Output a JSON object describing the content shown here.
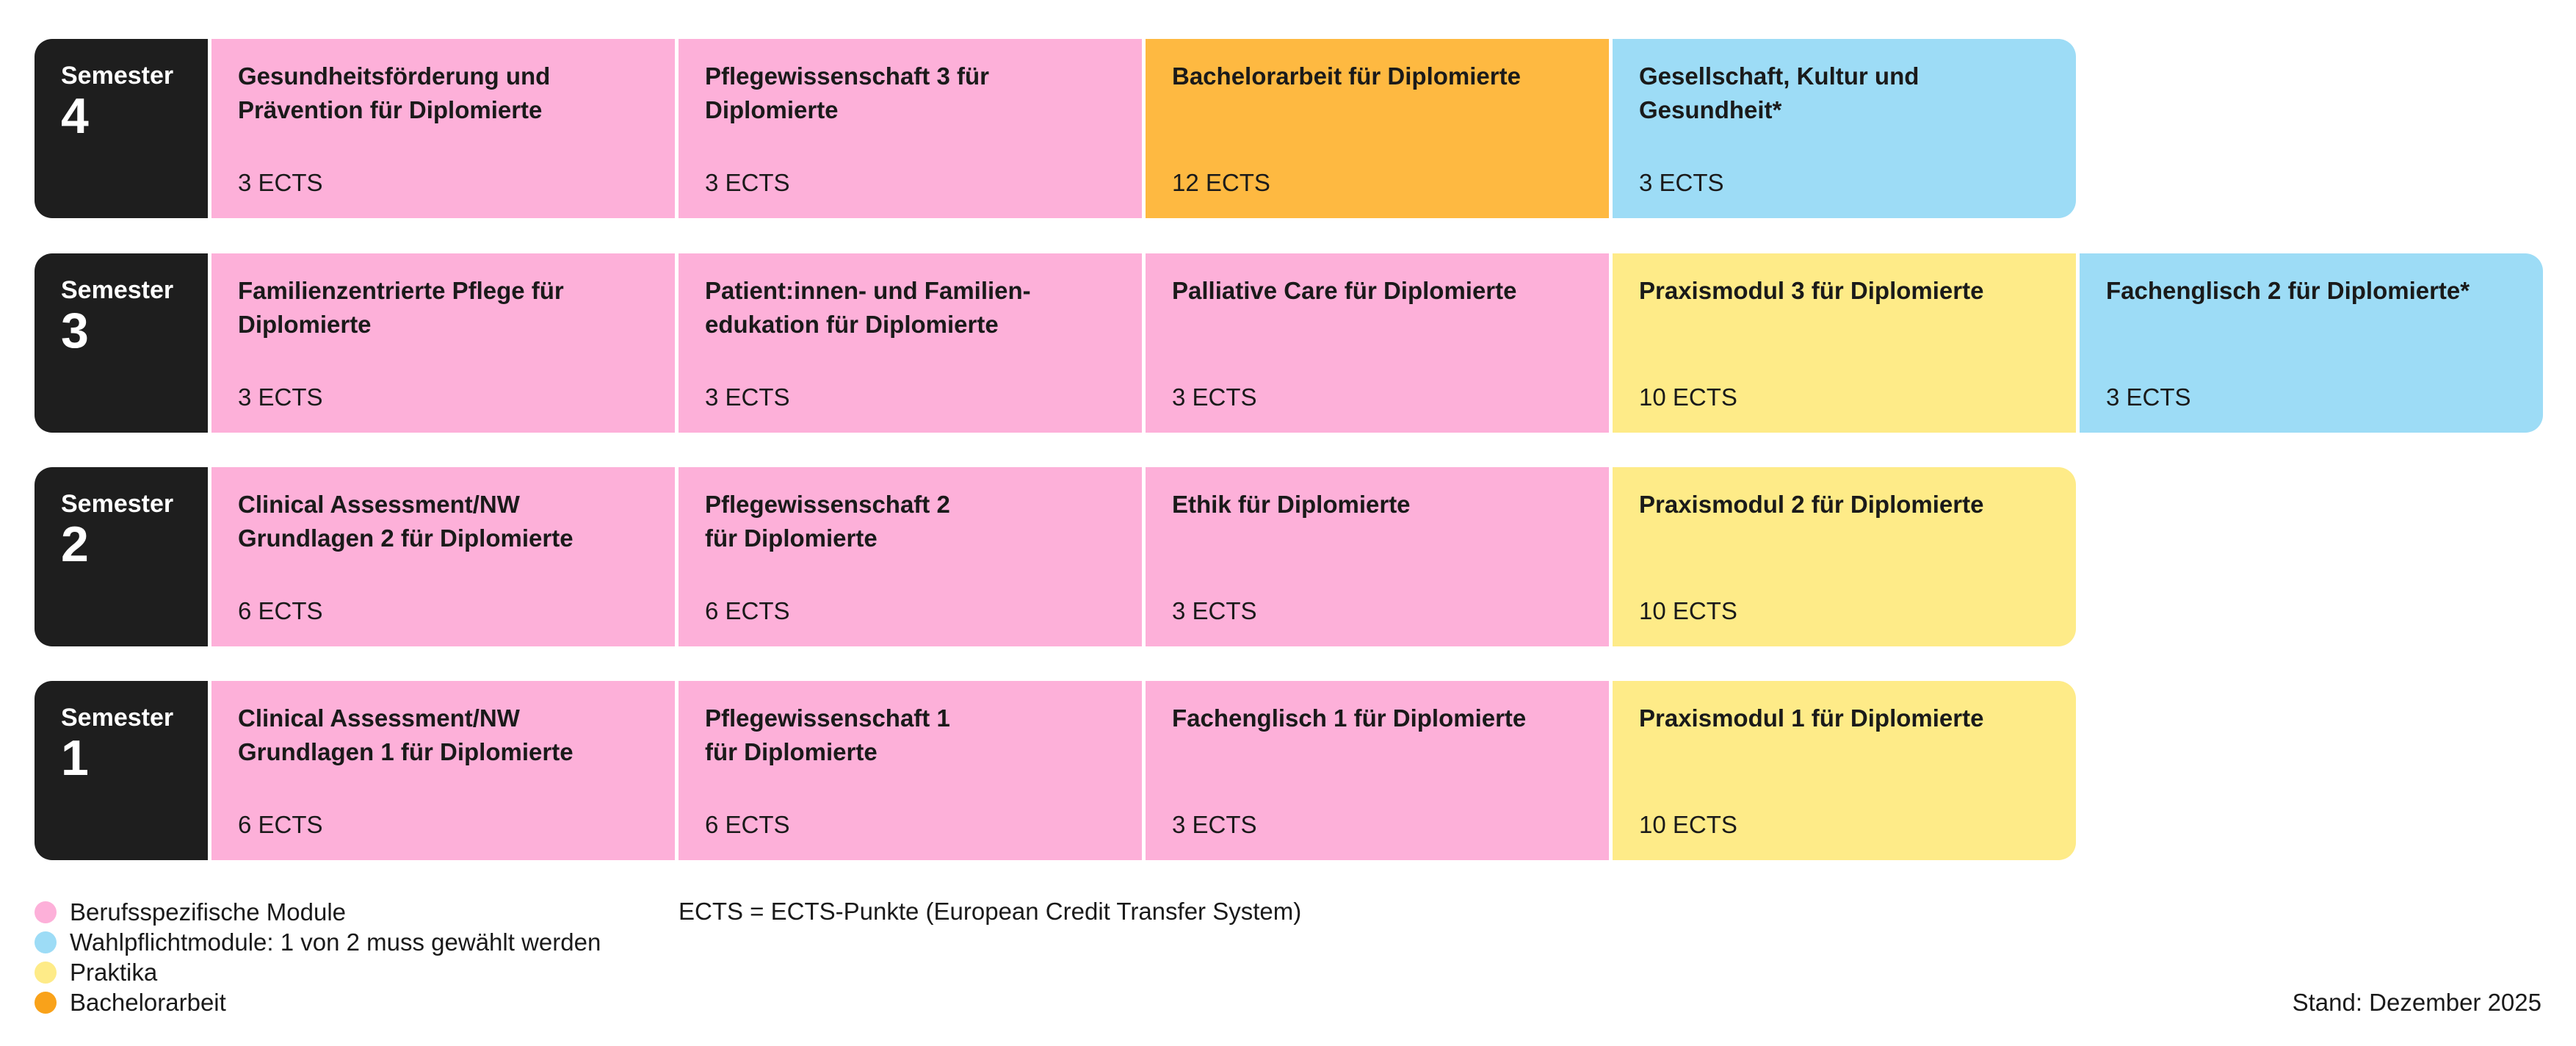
{
  "semesters": [
    {
      "label": "Semester",
      "number": "4",
      "modules": [
        {
          "title": "Gesundheitsförderung und\nPrävention für Diplomierte",
          "ects": "3 ECTS",
          "category": "pink"
        },
        {
          "title": "Pflegewissenschaft 3 für\nDiplomierte",
          "ects": "3 ECTS",
          "category": "pink"
        },
        {
          "title": "Bachelorarbeit für Diplomierte",
          "ects": "12 ECTS",
          "category": "orange"
        },
        {
          "title": "Gesellschaft, Kultur und\nGesundheit*",
          "ects": "3 ECTS",
          "category": "blue"
        }
      ]
    },
    {
      "label": "Semester",
      "number": "3",
      "modules": [
        {
          "title": "Familienzentrierte Pflege für\nDiplomierte",
          "ects": "3 ECTS",
          "category": "pink"
        },
        {
          "title": "Patient:innen- und Familien-\nedukation für Diplomierte",
          "ects": "3 ECTS",
          "category": "pink"
        },
        {
          "title": "Palliative Care für Diplomierte",
          "ects": "3 ECTS",
          "category": "pink"
        },
        {
          "title": "Praxismodul 3 für Diplomierte",
          "ects": "10 ECTS",
          "category": "yellow"
        },
        {
          "title": "Fachenglisch 2 für Diplomierte*",
          "ects": "3 ECTS",
          "category": "blue"
        }
      ]
    },
    {
      "label": "Semester",
      "number": "2",
      "modules": [
        {
          "title": "Clinical Assessment/NW\nGrundlagen 2 für Diplomierte",
          "ects": "6 ECTS",
          "category": "pink"
        },
        {
          "title": "Pflegewissenschaft 2\nfür Diplomierte",
          "ects": "6 ECTS",
          "category": "pink"
        },
        {
          "title": "Ethik für Diplomierte",
          "ects": "3 ECTS",
          "category": "pink"
        },
        {
          "title": "Praxismodul 2 für Diplomierte",
          "ects": "10 ECTS",
          "category": "yellow"
        }
      ]
    },
    {
      "label": "Semester",
      "number": "1",
      "modules": [
        {
          "title": "Clinical Assessment/NW\nGrundlagen 1 für Diplomierte",
          "ects": "6 ECTS",
          "category": "pink"
        },
        {
          "title": "Pflegewissenschaft 1\nfür Diplomierte",
          "ects": "6 ECTS",
          "category": "pink"
        },
        {
          "title": "Fachenglisch 1 für Diplomierte",
          "ects": "3 ECTS",
          "category": "pink"
        },
        {
          "title": "Praxismodul 1 für Diplomierte",
          "ects": "10 ECTS",
          "category": "yellow"
        }
      ]
    }
  ],
  "legend": [
    {
      "label": "Berufsspezifische Module",
      "color": "#fdb0d9"
    },
    {
      "label": "Wahlpflichtmodule: 1 von 2 muss gewählt werden",
      "color": "#9ddcf6"
    },
    {
      "label": "Praktika",
      "color": "#feeb88"
    },
    {
      "label": "Bachelorarbeit",
      "color": "#f9a21a"
    }
  ],
  "note": "ECTS = ECTS-Punkte (European Credit Transfer System)",
  "stand": "Stand: Dezember 2025"
}
